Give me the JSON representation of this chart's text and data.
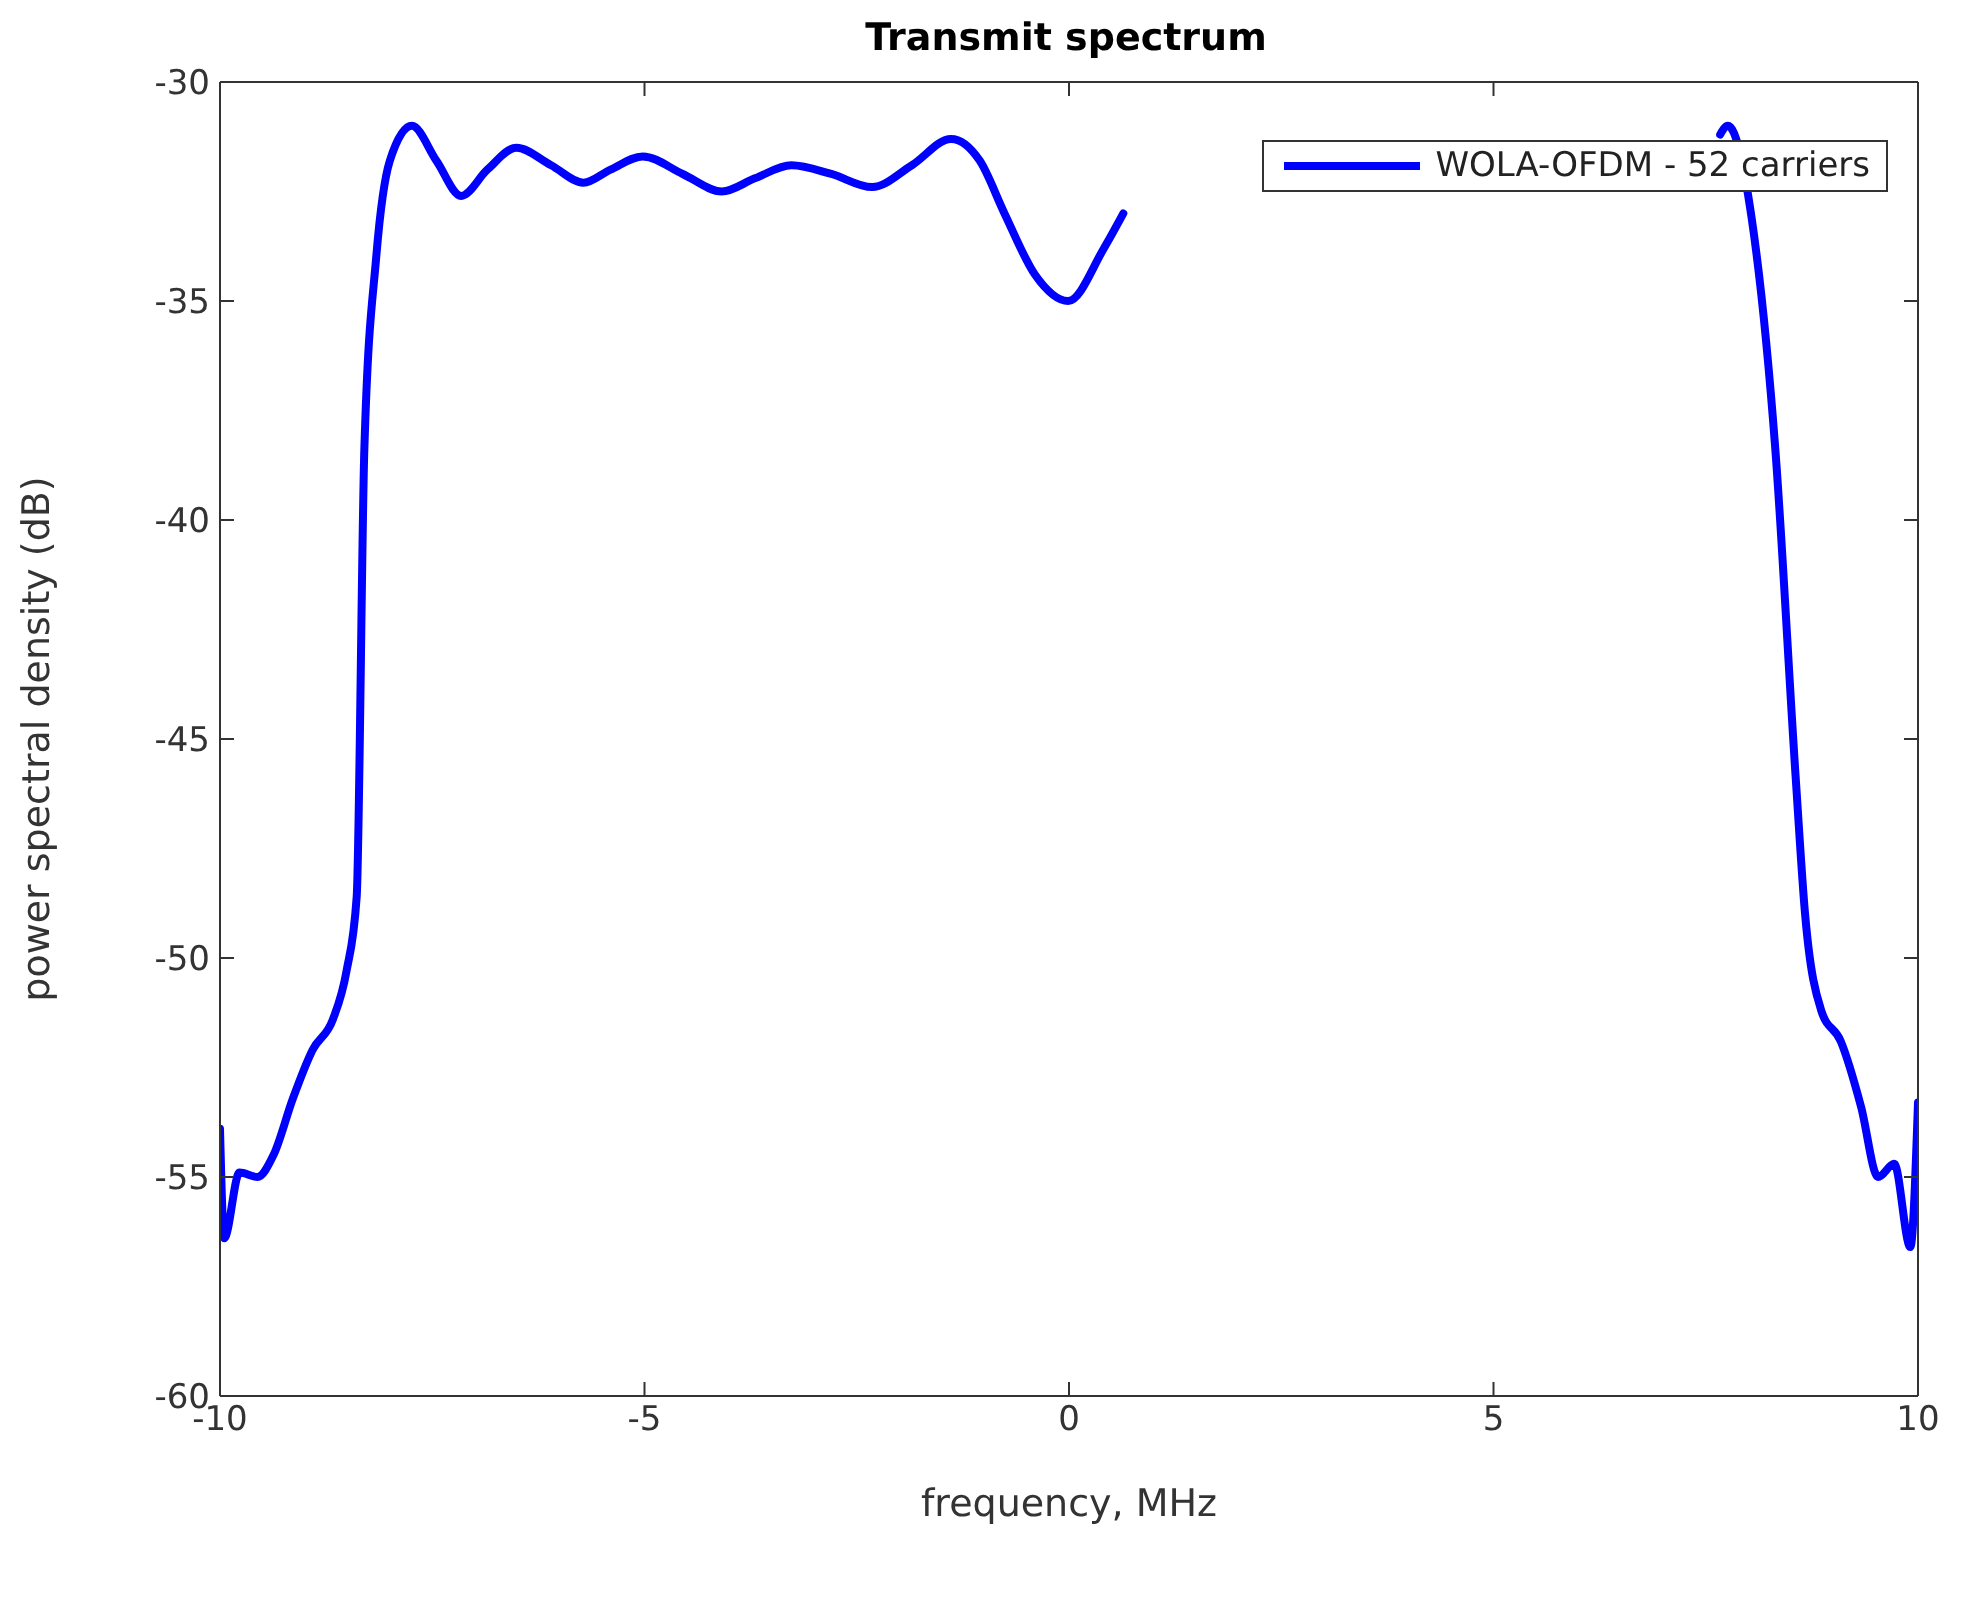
{
  "chart_data": {
    "type": "line",
    "title": "Transmit spectrum",
    "xlabel": "frequency, MHz",
    "ylabel": "power spectral density (dB)",
    "xlim": [
      -10,
      10
    ],
    "xticks": [
      -10,
      -5,
      0,
      5,
      10
    ],
    "ylim": [
      -60,
      -30
    ],
    "yticks": [
      -60,
      -55,
      -50,
      -45,
      -40,
      -35,
      -30
    ],
    "grid": false,
    "legend": "top right",
    "marker": "none",
    "line_style": "solid",
    "x": [
      -10,
      -9.95,
      -9.77,
      -9.56,
      -9.37,
      -9.14,
      -8.91,
      -8.67,
      -8.51,
      -8.39,
      -8.3,
      -8.16,
      -8.0,
      -7.74,
      -7.45,
      -7.16,
      -6.85,
      -6.51,
      -6.1,
      -5.72,
      -5.4,
      -5.02,
      -4.55,
      -4.09,
      -3.7,
      -3.27,
      -2.8,
      -2.32,
      -1.85,
      -1.39,
      -1.05,
      -0.76,
      -0.4,
      -0.01,
      0.41,
      0.64,
      4.0,
      7.67,
      7.76,
      8.04,
      8.32,
      8.56,
      8.67,
      8.86,
      9.09,
      9.33,
      9.53,
      9.72,
      9.91,
      10
    ],
    "series": [
      {
        "name": "WOLA-OFDM - 52 carriers",
        "color": "#0000ff",
        "values": [
          -53.9,
          -56.4,
          -54.9,
          -55.0,
          -54.5,
          -53.2,
          -52.1,
          -51.4,
          -50.3,
          -48.6,
          -38.4,
          -34.0,
          -31.8,
          -31.0,
          -31.8,
          -32.6,
          -32.0,
          -31.5,
          -31.9,
          -32.3,
          -32.0,
          -31.7,
          -32.1,
          -32.5,
          -32.2,
          -31.9,
          -32.1,
          -32.4,
          -31.9,
          -31.3,
          -31.8,
          -33.0,
          -34.4,
          -35.0,
          -33.8,
          -33.0,
          null,
          -31.2,
          -31.0,
          -33.1,
          -38.4,
          -45.9,
          -49.0,
          -51.2,
          -51.9,
          -53.4,
          -55.0,
          -54.7,
          -56.6,
          -53.3
        ]
      }
    ]
  }
}
